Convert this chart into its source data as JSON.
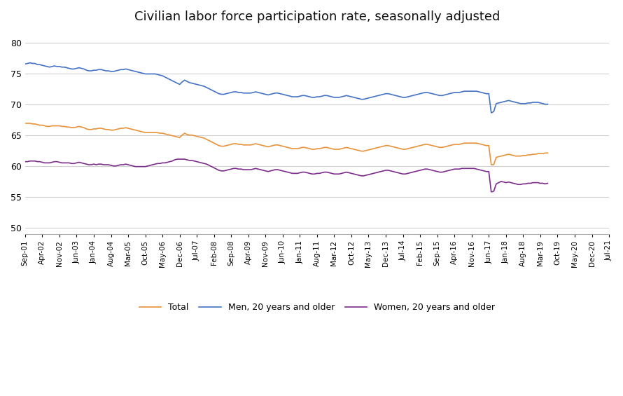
{
  "title": "Civilian labor force participation rate, seasonally adjusted",
  "title_fontsize": 13,
  "ylim": [
    49,
    82
  ],
  "yticks": [
    50,
    55,
    60,
    65,
    70,
    75,
    80
  ],
  "line_colors": {
    "total": "#E8923A",
    "men": "#4472C4",
    "women": "#7B2D8B"
  },
  "legend_labels": [
    "Total",
    "Men, 20 years and older",
    "Women, 20 years and older"
  ],
  "total": [
    66.9,
    66.9,
    66.9,
    66.8,
    66.8,
    66.7,
    66.6,
    66.6,
    66.5,
    66.4,
    66.4,
    66.5,
    66.5,
    66.5,
    66.5,
    66.4,
    66.4,
    66.3,
    66.3,
    66.2,
    66.2,
    66.3,
    66.4,
    66.3,
    66.2,
    66.0,
    65.9,
    65.9,
    66.0,
    66.0,
    66.1,
    66.1,
    66.0,
    65.9,
    65.9,
    65.8,
    65.8,
    65.9,
    66.0,
    66.1,
    66.1,
    66.2,
    66.1,
    66.0,
    65.9,
    65.8,
    65.7,
    65.6,
    65.5,
    65.4,
    65.4,
    65.4,
    65.4,
    65.4,
    65.4,
    65.3,
    65.3,
    65.2,
    65.1,
    65.0,
    64.9,
    64.8,
    64.7,
    64.6,
    65.0,
    65.3,
    65.1,
    65.0,
    65.0,
    64.9,
    64.8,
    64.7,
    64.6,
    64.5,
    64.3,
    64.1,
    63.9,
    63.7,
    63.5,
    63.3,
    63.2,
    63.2,
    63.3,
    63.4,
    63.5,
    63.6,
    63.6,
    63.5,
    63.5,
    63.4,
    63.4,
    63.4,
    63.4,
    63.5,
    63.6,
    63.5,
    63.4,
    63.3,
    63.2,
    63.1,
    63.2,
    63.3,
    63.4,
    63.4,
    63.3,
    63.2,
    63.1,
    63.0,
    62.9,
    62.8,
    62.8,
    62.8,
    62.9,
    63.0,
    63.0,
    62.9,
    62.8,
    62.7,
    62.7,
    62.8,
    62.8,
    62.9,
    63.0,
    63.0,
    62.9,
    62.8,
    62.7,
    62.7,
    62.7,
    62.8,
    62.9,
    63.0,
    62.9,
    62.8,
    62.7,
    62.6,
    62.5,
    62.4,
    62.4,
    62.5,
    62.6,
    62.7,
    62.8,
    62.9,
    63.0,
    63.1,
    63.2,
    63.3,
    63.3,
    63.2,
    63.1,
    63.0,
    62.9,
    62.8,
    62.7,
    62.7,
    62.8,
    62.9,
    63.0,
    63.1,
    63.2,
    63.3,
    63.4,
    63.5,
    63.5,
    63.4,
    63.3,
    63.2,
    63.1,
    63.0,
    63.0,
    63.1,
    63.2,
    63.3,
    63.4,
    63.5,
    63.5,
    63.5,
    63.6,
    63.7,
    63.7,
    63.7,
    63.7,
    63.7,
    63.7,
    63.6,
    63.5,
    63.4,
    63.3,
    63.3,
    60.2,
    60.2,
    61.4,
    61.5,
    61.6,
    61.7,
    61.8,
    61.9,
    61.8,
    61.7,
    61.6,
    61.6,
    61.6,
    61.7,
    61.7,
    61.8,
    61.8,
    61.9,
    61.9,
    62.0,
    62.0,
    62.0,
    62.1,
    62.1
  ],
  "men": [
    76.5,
    76.6,
    76.7,
    76.6,
    76.6,
    76.4,
    76.4,
    76.3,
    76.2,
    76.1,
    76.0,
    76.1,
    76.2,
    76.1,
    76.1,
    76.0,
    76.0,
    75.9,
    75.8,
    75.7,
    75.7,
    75.8,
    75.9,
    75.8,
    75.7,
    75.5,
    75.4,
    75.4,
    75.5,
    75.5,
    75.6,
    75.6,
    75.5,
    75.4,
    75.4,
    75.3,
    75.3,
    75.4,
    75.5,
    75.6,
    75.6,
    75.7,
    75.6,
    75.5,
    75.4,
    75.3,
    75.2,
    75.1,
    75.0,
    74.9,
    74.9,
    74.9,
    74.9,
    74.9,
    74.8,
    74.7,
    74.6,
    74.4,
    74.2,
    74.0,
    73.8,
    73.6,
    73.4,
    73.2,
    73.6,
    73.9,
    73.7,
    73.5,
    73.4,
    73.3,
    73.2,
    73.1,
    73.0,
    72.9,
    72.7,
    72.5,
    72.3,
    72.1,
    71.9,
    71.7,
    71.6,
    71.6,
    71.7,
    71.8,
    71.9,
    72.0,
    72.0,
    71.9,
    71.9,
    71.8,
    71.8,
    71.8,
    71.8,
    71.9,
    72.0,
    71.9,
    71.8,
    71.7,
    71.6,
    71.5,
    71.6,
    71.7,
    71.8,
    71.8,
    71.7,
    71.6,
    71.5,
    71.4,
    71.3,
    71.2,
    71.2,
    71.2,
    71.3,
    71.4,
    71.4,
    71.3,
    71.2,
    71.1,
    71.1,
    71.2,
    71.2,
    71.3,
    71.4,
    71.4,
    71.3,
    71.2,
    71.1,
    71.1,
    71.1,
    71.2,
    71.3,
    71.4,
    71.3,
    71.2,
    71.1,
    71.0,
    70.9,
    70.8,
    70.8,
    70.9,
    71.0,
    71.1,
    71.2,
    71.3,
    71.4,
    71.5,
    71.6,
    71.7,
    71.7,
    71.6,
    71.5,
    71.4,
    71.3,
    71.2,
    71.1,
    71.1,
    71.2,
    71.3,
    71.4,
    71.5,
    71.6,
    71.7,
    71.8,
    71.9,
    71.9,
    71.8,
    71.7,
    71.6,
    71.5,
    71.4,
    71.4,
    71.5,
    71.6,
    71.7,
    71.8,
    71.9,
    71.9,
    71.9,
    72.0,
    72.1,
    72.1,
    72.1,
    72.1,
    72.1,
    72.1,
    72.0,
    71.9,
    71.8,
    71.7,
    71.7,
    68.6,
    68.8,
    70.1,
    70.2,
    70.3,
    70.4,
    70.5,
    70.6,
    70.5,
    70.4,
    70.3,
    70.2,
    70.1,
    70.1,
    70.1,
    70.2,
    70.2,
    70.3,
    70.3,
    70.3,
    70.2,
    70.1,
    70.0,
    70.0
  ],
  "women": [
    60.7,
    60.7,
    60.8,
    60.8,
    60.8,
    60.7,
    60.7,
    60.6,
    60.5,
    60.5,
    60.5,
    60.6,
    60.7,
    60.7,
    60.6,
    60.5,
    60.5,
    60.5,
    60.5,
    60.4,
    60.4,
    60.5,
    60.6,
    60.5,
    60.4,
    60.3,
    60.2,
    60.2,
    60.3,
    60.2,
    60.3,
    60.3,
    60.2,
    60.2,
    60.2,
    60.1,
    60.0,
    60.0,
    60.1,
    60.2,
    60.2,
    60.3,
    60.2,
    60.1,
    60.0,
    59.9,
    59.9,
    59.9,
    59.9,
    59.9,
    60.0,
    60.1,
    60.2,
    60.3,
    60.4,
    60.4,
    60.5,
    60.5,
    60.6,
    60.7,
    60.8,
    61.0,
    61.1,
    61.1,
    61.1,
    61.1,
    61.0,
    60.9,
    60.9,
    60.8,
    60.7,
    60.6,
    60.5,
    60.4,
    60.3,
    60.1,
    59.9,
    59.7,
    59.5,
    59.3,
    59.2,
    59.2,
    59.3,
    59.4,
    59.5,
    59.6,
    59.6,
    59.5,
    59.5,
    59.4,
    59.4,
    59.4,
    59.4,
    59.5,
    59.6,
    59.5,
    59.4,
    59.3,
    59.2,
    59.1,
    59.2,
    59.3,
    59.4,
    59.4,
    59.3,
    59.2,
    59.1,
    59.0,
    58.9,
    58.8,
    58.8,
    58.8,
    58.9,
    59.0,
    59.0,
    58.9,
    58.8,
    58.7,
    58.7,
    58.8,
    58.8,
    58.9,
    59.0,
    59.0,
    58.9,
    58.8,
    58.7,
    58.7,
    58.7,
    58.8,
    58.9,
    59.0,
    58.9,
    58.8,
    58.7,
    58.6,
    58.5,
    58.4,
    58.4,
    58.5,
    58.6,
    58.7,
    58.8,
    58.9,
    59.0,
    59.1,
    59.2,
    59.3,
    59.3,
    59.2,
    59.1,
    59.0,
    58.9,
    58.8,
    58.7,
    58.7,
    58.8,
    58.9,
    59.0,
    59.1,
    59.2,
    59.3,
    59.4,
    59.5,
    59.5,
    59.4,
    59.3,
    59.2,
    59.1,
    59.0,
    59.0,
    59.1,
    59.2,
    59.3,
    59.4,
    59.5,
    59.5,
    59.5,
    59.6,
    59.6,
    59.6,
    59.6,
    59.6,
    59.6,
    59.5,
    59.4,
    59.3,
    59.2,
    59.1,
    59.1,
    55.8,
    55.9,
    57.1,
    57.3,
    57.5,
    57.4,
    57.3,
    57.4,
    57.3,
    57.2,
    57.1,
    57.0,
    57.0,
    57.1,
    57.1,
    57.2,
    57.2,
    57.3,
    57.3,
    57.3,
    57.2,
    57.2,
    57.1,
    57.2
  ],
  "x_tick_labels": [
    "Sep-01",
    "Apr-02",
    "Nov-02",
    "Jun-03",
    "Jan-04",
    "Aug-04",
    "Mar-05",
    "Oct-05",
    "May-06",
    "Dec-06",
    "Jul-07",
    "Feb-08",
    "Sep-08",
    "Apr-09",
    "Nov-09",
    "Jun-10",
    "Jan-11",
    "Aug-11",
    "Mar-12",
    "Oct-12",
    "May-13",
    "Dec-13",
    "Jul-14",
    "Feb-15",
    "Sep-15",
    "Apr-16",
    "Nov-16",
    "Jun-17",
    "Jan-18",
    "Aug-18",
    "Mar-19",
    "Oct-19",
    "May-20",
    "Dec-20",
    "Jul-21"
  ],
  "tick_dates": [
    "2001-09-01",
    "2002-04-01",
    "2002-11-01",
    "2003-06-01",
    "2004-01-01",
    "2004-08-01",
    "2005-03-01",
    "2005-10-01",
    "2006-05-01",
    "2006-12-01",
    "2007-07-01",
    "2008-02-01",
    "2008-09-01",
    "2009-04-01",
    "2009-11-01",
    "2010-06-01",
    "2011-01-01",
    "2011-08-01",
    "2012-03-01",
    "2012-10-01",
    "2013-05-01",
    "2013-12-01",
    "2014-07-01",
    "2015-02-01",
    "2015-09-01",
    "2016-04-01",
    "2016-11-01",
    "2017-06-01",
    "2018-01-01",
    "2018-08-01",
    "2019-03-01",
    "2019-10-01",
    "2020-05-01",
    "2020-12-01",
    "2021-07-01"
  ],
  "background_color": "#FFFFFF",
  "grid_color": "#D0D0D0",
  "linewidth": 1.2
}
